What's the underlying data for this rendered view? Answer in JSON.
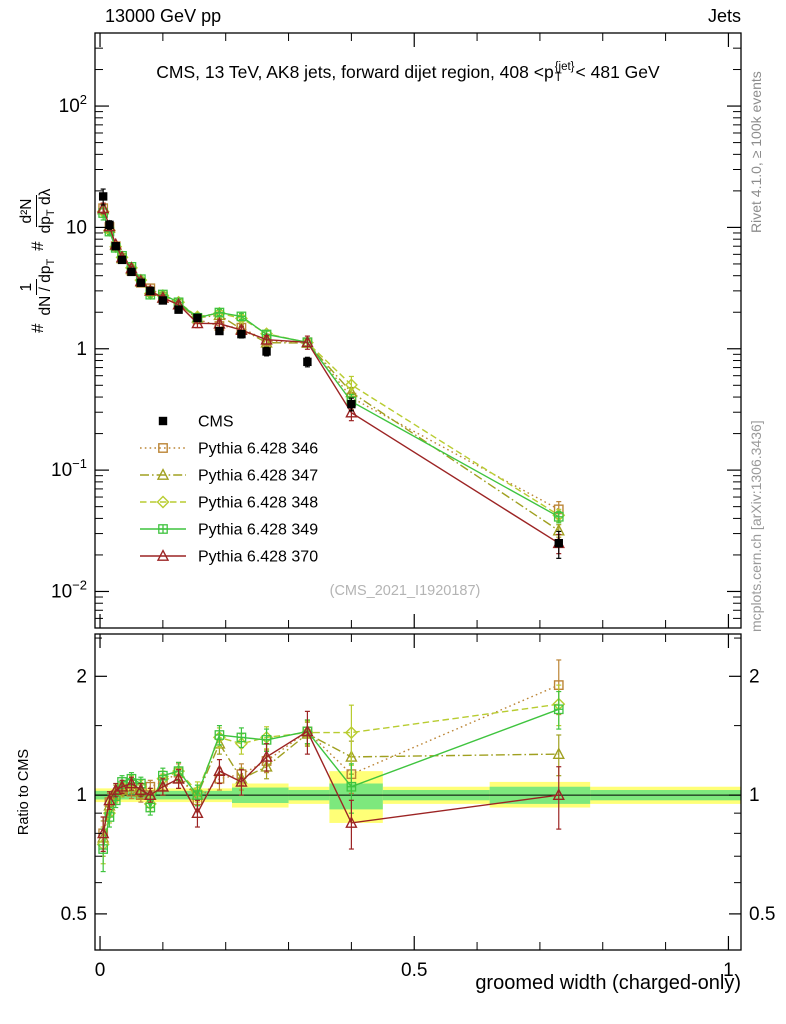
{
  "header": {
    "left": "13000 GeV pp",
    "right": "Jets"
  },
  "panel_title": {
    "pre": "CMS, 13 TeV, AK8 jets, forward dijet region, 408 <p",
    "sup": "{jet}",
    "sub": "T",
    "post": "< 481 GeV"
  },
  "ylabel_main": {
    "hash": "#",
    "f1_num": "1",
    "f1_den_a": "dN / dp",
    "f1_den_sub": "T",
    "f2_num": "d²N",
    "f2_den_a": "dp",
    "f2_den_sub": "T",
    "f2_den_b": " dλ"
  },
  "ratio_ylabel": "Ratio to CMS",
  "xlabel": "groomed width (charged-only)",
  "watermark": "(CMS_2021_I1920187)",
  "side_notes": {
    "top_right": "Rivet 4.1.0, ≥ 100k events",
    "bottom_right": "mcplots.cern.ch [arXiv:1306.3436]"
  },
  "chart_data": {
    "type": "line",
    "title": "CMS, 13 TeV, AK8 jets, forward dijet region, 408 <p_T^{jet}< 481 GeV",
    "xlabel": "groomed width (charged-only)",
    "ylabel": "1/(dN/dp_T) d²N/(dp_T dλ)",
    "ylabel_ratio": "Ratio to CMS",
    "x": [
      0.005,
      0.015,
      0.025,
      0.035,
      0.05,
      0.065,
      0.08,
      0.1,
      0.125,
      0.155,
      0.19,
      0.225,
      0.265,
      0.33,
      0.4,
      0.73
    ],
    "reference": {
      "label": "CMS",
      "color": "#000000",
      "marker": "square-filled",
      "line": "none",
      "y": [
        18,
        10.5,
        7.0,
        5.4,
        4.3,
        3.5,
        3.0,
        2.5,
        2.1,
        1.8,
        1.4,
        1.32,
        0.95,
        0.78,
        0.35,
        0.025
      ],
      "err_frac": [
        0.15,
        0.08,
        0.06,
        0.05,
        0.05,
        0.05,
        0.05,
        0.05,
        0.05,
        0.06,
        0.06,
        0.07,
        0.08,
        0.09,
        0.12,
        0.25
      ]
    },
    "series": [
      {
        "label": "Pythia 6.428 346",
        "color": "#bc8536",
        "marker": "square-open",
        "line": "dotted",
        "ratio": [
          0.8,
          0.96,
          1.0,
          1.04,
          1.02,
          1.0,
          1.05,
          1.08,
          1.14,
          0.97,
          1.1,
          1.13,
          1.22,
          1.45,
          1.13,
          1.9
        ],
        "err": [
          0.08,
          0.05,
          0.04,
          0.04,
          0.04,
          0.04,
          0.04,
          0.05,
          0.06,
          0.06,
          0.07,
          0.07,
          0.08,
          0.1,
          0.12,
          0.3
        ]
      },
      {
        "label": "Pythia 6.428 347",
        "color": "#a0a020",
        "marker": "triangle-open",
        "line": "dashdot",
        "ratio": [
          0.78,
          0.94,
          1.02,
          1.03,
          1.05,
          1.02,
          1.0,
          1.05,
          1.1,
          1.0,
          1.35,
          1.1,
          1.18,
          1.43,
          1.25,
          1.27
        ],
        "err": [
          0.08,
          0.05,
          0.04,
          0.04,
          0.04,
          0.04,
          0.04,
          0.05,
          0.06,
          0.06,
          0.08,
          0.07,
          0.08,
          0.1,
          0.12,
          0.15
        ]
      },
      {
        "label": "Pythia 6.428 348",
        "color": "#b8cc30",
        "marker": "diamond-open",
        "line": "dashed",
        "ratio": [
          0.75,
          0.9,
          0.99,
          1.05,
          1.08,
          1.05,
          0.95,
          1.1,
          1.15,
          1.02,
          1.4,
          1.35,
          1.4,
          1.44,
          1.44,
          1.7
        ],
        "err": [
          0.08,
          0.05,
          0.04,
          0.04,
          0.04,
          0.04,
          0.04,
          0.05,
          0.06,
          0.06,
          0.08,
          0.08,
          0.09,
          0.1,
          0.25,
          0.2
        ]
      },
      {
        "label": "Pythia 6.428 349",
        "color": "#3fc43f",
        "marker": "square-plus",
        "line": "solid",
        "ratio": [
          0.73,
          0.88,
          0.97,
          1.08,
          1.1,
          1.07,
          0.93,
          1.12,
          1.15,
          1.0,
          1.42,
          1.4,
          1.38,
          1.45,
          1.05,
          1.65
        ],
        "err": [
          0.09,
          0.05,
          0.04,
          0.04,
          0.04,
          0.04,
          0.04,
          0.05,
          0.06,
          0.06,
          0.08,
          0.08,
          0.09,
          0.1,
          0.15,
          0.18
        ]
      },
      {
        "label": "Pythia 6.428 370",
        "color": "#9c2424",
        "marker": "triangle-open",
        "line": "solid",
        "ratio": [
          0.8,
          0.97,
          1.03,
          1.05,
          1.07,
          1.03,
          1.0,
          1.05,
          1.1,
          0.9,
          1.15,
          1.08,
          1.25,
          1.45,
          0.85,
          1.0
        ],
        "err": [
          0.08,
          0.05,
          0.04,
          0.04,
          0.04,
          0.04,
          0.04,
          0.05,
          0.06,
          0.07,
          0.08,
          0.08,
          0.1,
          0.18,
          0.12,
          0.18
        ]
      }
    ],
    "xlim": [
      -0.008,
      1.02
    ],
    "ylim_main": [
      0.005,
      400
    ],
    "ylim_ratio": [
      0.405,
      2.56
    ],
    "xticks": [
      {
        "v": 0,
        "label": "0"
      },
      {
        "v": 0.5,
        "label": "0.5"
      },
      {
        "v": 1,
        "label": "1"
      }
    ],
    "xminor_step": 0.1,
    "yticks_main": [
      {
        "v": 100,
        "base": "10",
        "exp": "2"
      },
      {
        "v": 10,
        "base": "10",
        "exp": ""
      },
      {
        "v": 1,
        "base": "1",
        "exp": ""
      },
      {
        "v": 0.1,
        "base": "10",
        "exp": "−1"
      },
      {
        "v": 0.01,
        "base": "10",
        "exp": "−2"
      }
    ],
    "yticks_ratio": [
      {
        "v": 2,
        "label": "2"
      },
      {
        "v": 1,
        "label": "1"
      },
      {
        "v": 0.5,
        "label": "0.5"
      }
    ],
    "ratio_minor": [
      0.6,
      0.7,
      0.8,
      0.9,
      1.5,
      2.5
    ],
    "bands": [
      {
        "x0": -0.008,
        "x1": 0.21,
        "ylo": 0.96,
        "yhi": 1.04,
        "glo": 0.975,
        "ghi": 1.025
      },
      {
        "x0": 0.21,
        "x1": 0.3,
        "ylo": 0.93,
        "yhi": 1.07,
        "glo": 0.955,
        "ghi": 1.045
      },
      {
        "x0": 0.3,
        "x1": 0.365,
        "ylo": 0.95,
        "yhi": 1.05,
        "glo": 0.97,
        "ghi": 1.03
      },
      {
        "x0": 0.365,
        "x1": 0.45,
        "ylo": 0.85,
        "yhi": 1.15,
        "glo": 0.92,
        "ghi": 1.07
      },
      {
        "x0": 0.45,
        "x1": 0.62,
        "ylo": 0.95,
        "yhi": 1.05,
        "glo": 0.97,
        "ghi": 1.03
      },
      {
        "x0": 0.62,
        "x1": 0.78,
        "ylo": 0.93,
        "yhi": 1.08,
        "glo": 0.95,
        "ghi": 1.05
      },
      {
        "x0": 0.78,
        "x1": 1.02,
        "ylo": 0.95,
        "yhi": 1.05,
        "glo": 0.97,
        "ghi": 1.03
      }
    ],
    "colors": {
      "band_yellow": "#ffff77",
      "band_green": "#7de87d",
      "axis": "#000000"
    }
  }
}
